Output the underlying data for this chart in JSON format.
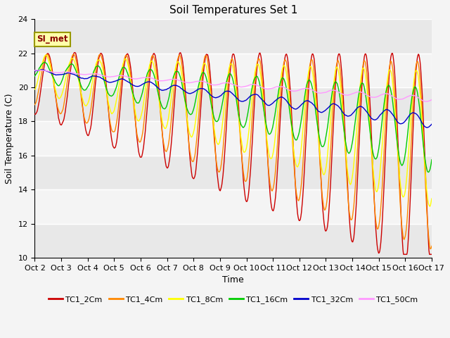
{
  "title": "Soil Temperatures Set 1",
  "xlabel": "Time",
  "ylabel": "Soil Temperature (C)",
  "ylim": [
    10,
    24
  ],
  "yticks": [
    10,
    12,
    14,
    16,
    18,
    20,
    22,
    24
  ],
  "xtick_labels": [
    "Oct 2",
    "Oct 3",
    "Oct 4",
    "Oct 5",
    "Oct 6",
    "Oct 7",
    "Oct 8",
    "Oct 9",
    "Oct 10",
    "Oct 11",
    "Oct 12",
    "Oct 13",
    "Oct 14",
    "Oct 15",
    "Oct 16",
    "Oct 17"
  ],
  "legend_labels": [
    "TC1_2Cm",
    "TC1_4Cm",
    "TC1_8Cm",
    "TC1_16Cm",
    "TC1_32Cm",
    "TC1_50Cm"
  ],
  "colors": [
    "#cc0000",
    "#ff8800",
    "#ffff00",
    "#00cc00",
    "#0000cc",
    "#ff99ff"
  ],
  "linewidths": [
    1.0,
    1.0,
    1.0,
    1.0,
    1.0,
    1.0
  ],
  "annotation_text": "SI_met",
  "n_days": 15,
  "pts_per_day": 48,
  "fig_width": 6.4,
  "fig_height": 4.8,
  "dpi": 100
}
